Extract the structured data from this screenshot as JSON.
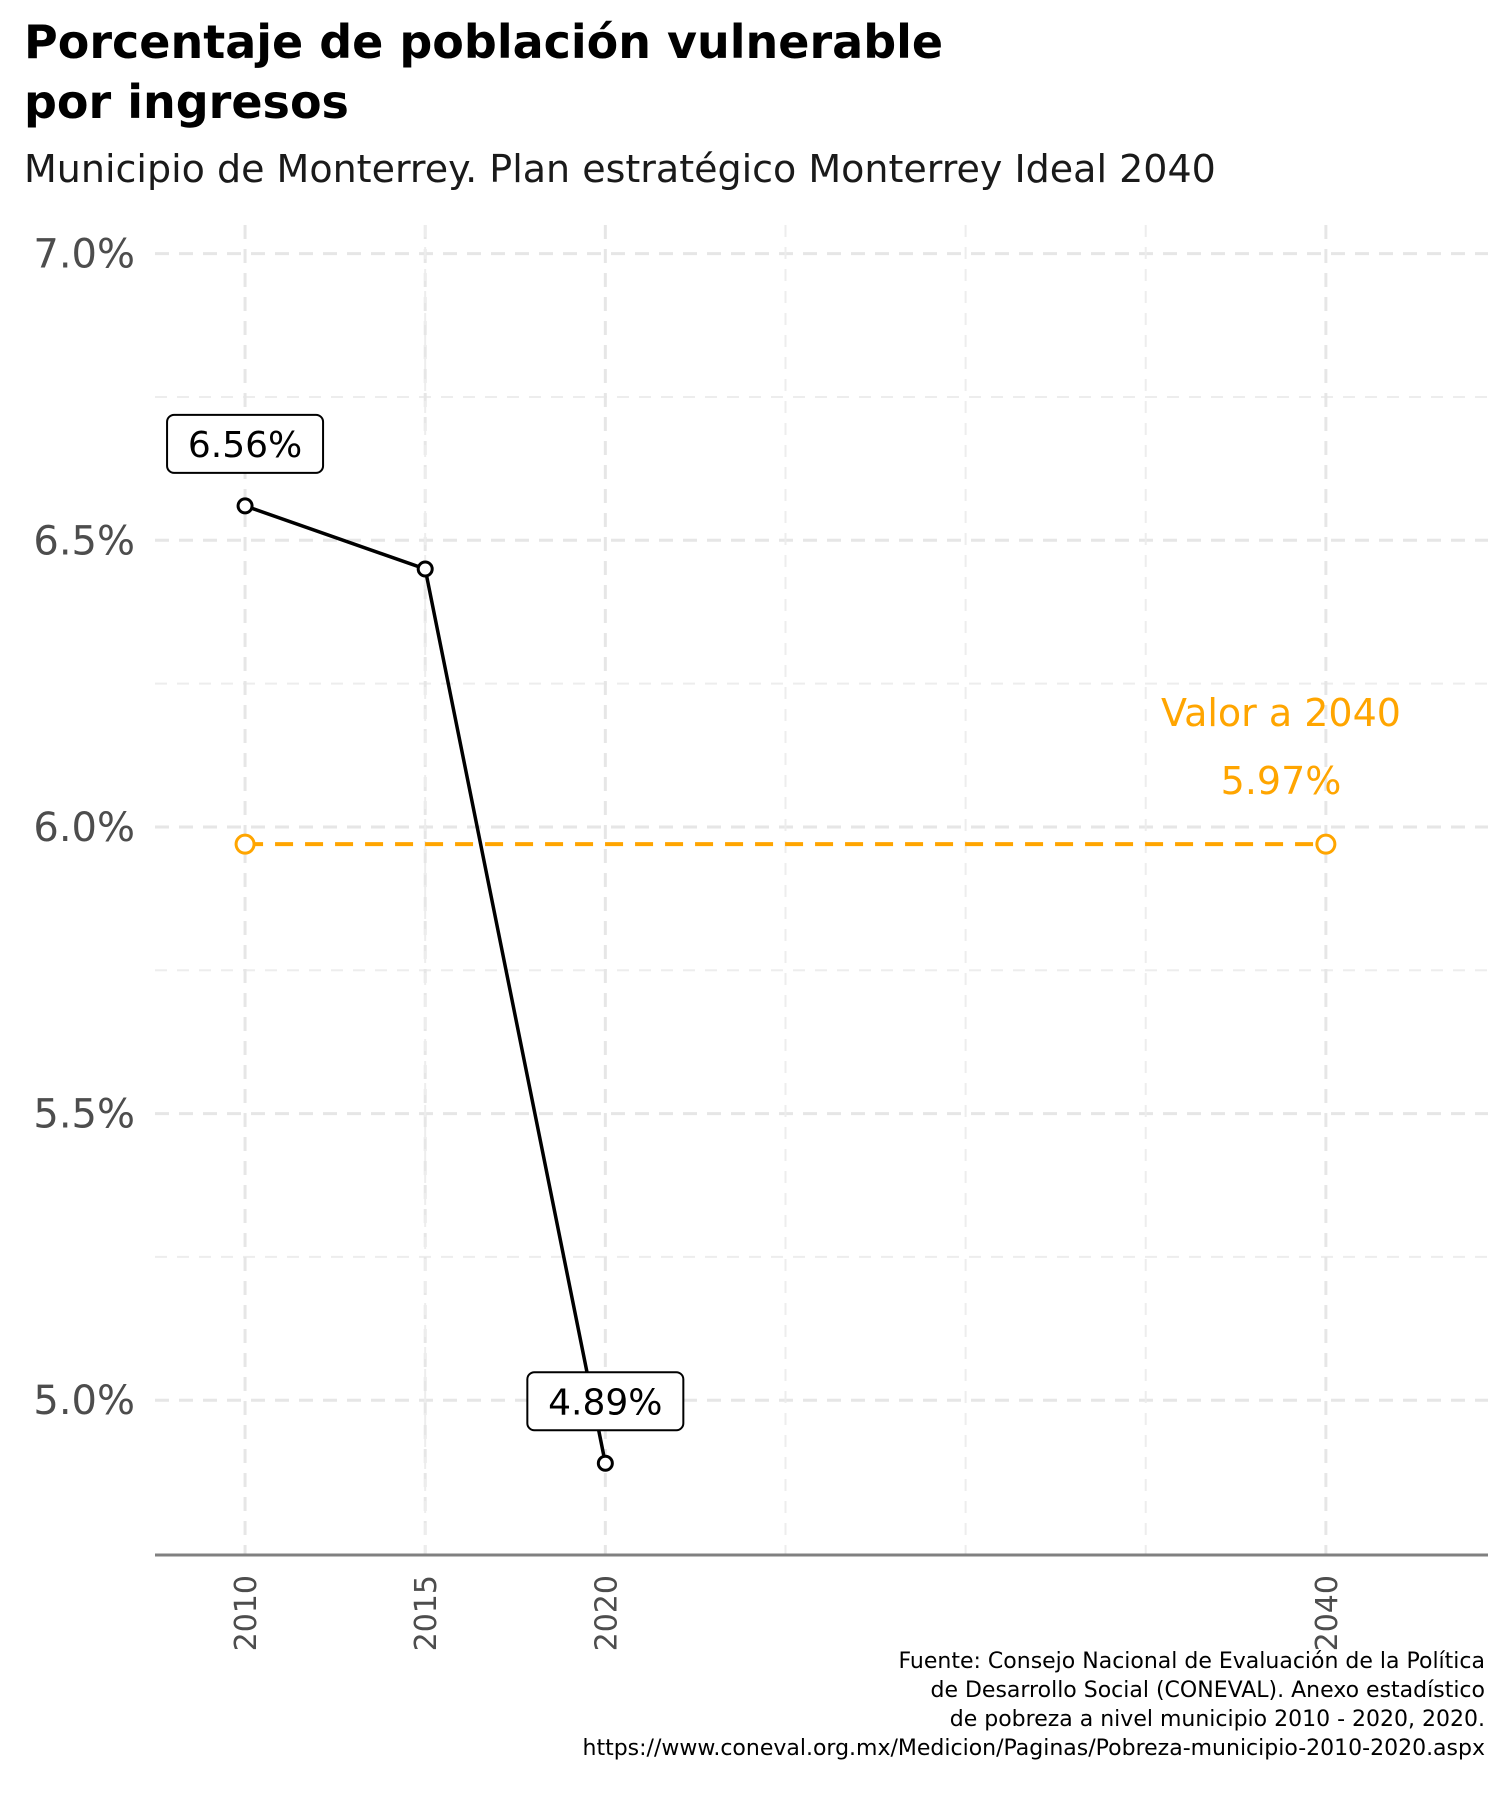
{
  "chart_data": {
    "type": "line",
    "title_lines": [
      "Porcentaje de población vulnerable",
      "por ingresos"
    ],
    "subtitle": "Municipio de Monterrey. Plan estratégico Monterrey Ideal 2040",
    "x": [
      2010,
      2015,
      2020
    ],
    "x_ticks": [
      "2010",
      "2015",
      "2020",
      "2040"
    ],
    "xlim": [
      2007.5,
      2044.5
    ],
    "ylim": [
      4.73,
      7.05
    ],
    "y_ticks": [
      "5.0%",
      "5.5%",
      "6.0%",
      "6.5%",
      "7.0%"
    ],
    "y_tick_values": [
      5.0,
      5.5,
      6.0,
      6.5,
      7.0
    ],
    "series": [
      {
        "values": [
          6.56,
          6.45,
          4.89
        ],
        "color": "#000000"
      }
    ],
    "data_labels": [
      {
        "x": 2010,
        "y": 6.56,
        "text": "6.56%"
      },
      {
        "x": 2020,
        "y": 4.89,
        "text": "4.89%"
      }
    ],
    "target": {
      "x": [
        2010,
        2040
      ],
      "value": 5.97,
      "color": "#FFA500",
      "style": "dashed",
      "label": "Valor a 2040",
      "value_label": "5.97%"
    },
    "grid": true,
    "caption_lines": [
      "Fuente: Consejo Nacional de Evaluación de la Política",
      "de Desarrollo Social (CONEVAL). Anexo estadístico",
      "de pobreza a nivel municipio 2010 - 2020, 2020.",
      "https://www.coneval.org.mx/Medicion/Paginas/Pobreza-municipio-2010-2020.aspx"
    ]
  }
}
